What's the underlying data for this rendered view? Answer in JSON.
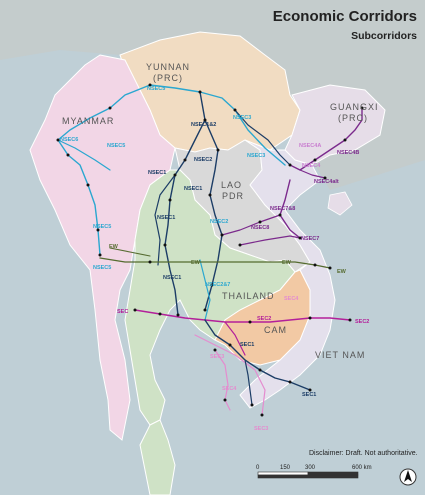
{
  "header": {
    "title": "Economic Corridors",
    "subtitle": "Subcorridors"
  },
  "countries": {
    "yunnan": "YUNNAN",
    "yunnan_sub": "(PRC)",
    "guangxi": "GUANGXI",
    "guangxi_sub": "(PRC)",
    "myanmar": "MYANMAR",
    "lao": "LAO",
    "lao_sub": "PDR",
    "thailand": "THAILAND",
    "cambodia": "CAM",
    "vietnam": "VIET NAM"
  },
  "corridor_labels": {
    "nsec5_top": "NSEC5",
    "nsec5_mid": "NSEC5",
    "nsec5_low": "NSEC5",
    "nsec6": "NSEC6",
    "nsec1_2": "NSEC1&2",
    "nsec3_a": "NSEC3",
    "nsec3_b": "NSEC3",
    "nsec2_a": "NSEC2",
    "nsec2_b": "NSEC2",
    "nsec1_a": "NSEC1",
    "nsec1_b": "NSEC1",
    "nsec1_c": "NSEC1",
    "nsec1_d": "NSEC1",
    "nsec2_7": "NSEC2&7",
    "nsec4a": "NSEC4A",
    "nsec4b": "NSEC4B",
    "nsec4": "NSEC4",
    "nsec4alt": "NSEC4alt",
    "nsec7_8": "NSEC7&8",
    "nsec8": "NSEC8",
    "nsec7": "NSEC7",
    "nsec5_w": "NSEC5",
    "ew_a": "EW",
    "ew_b": "EW",
    "ew_c": "EW",
    "ew_d": "EW",
    "sec_w": "SEC",
    "sec2_a": "SEC2",
    "sec2_b": "SEC2",
    "sec4": "SEC4",
    "sec1_a": "SEC1",
    "sec1_b": "SEC1",
    "sec3_a": "SEC3",
    "sec3_b": "SEC3",
    "sec4_b": "SEC4"
  },
  "legend": {
    "disclaimer": "Disclaimer: Draft. Not authoritative.",
    "scale_ticks": [
      "0",
      "150",
      "300",
      "600 km"
    ]
  },
  "colors": {
    "sea": "#bfcfd6",
    "myanmar": "#f2d6e6",
    "yunnan": "#f1dcc2",
    "guangxi": "#e6dde8",
    "lao": "#d9d9d9",
    "thailand": "#cfe2c6",
    "cambodia": "#f2c9a4",
    "vietnam": "#e4e0ec",
    "nsec_cyan": "#2aa7d0",
    "nsec_navy": "#1c3d66",
    "nsec_purple": "#7b2a8c",
    "sec_magenta": "#b3209a",
    "ew_green": "#6a7a3a"
  }
}
